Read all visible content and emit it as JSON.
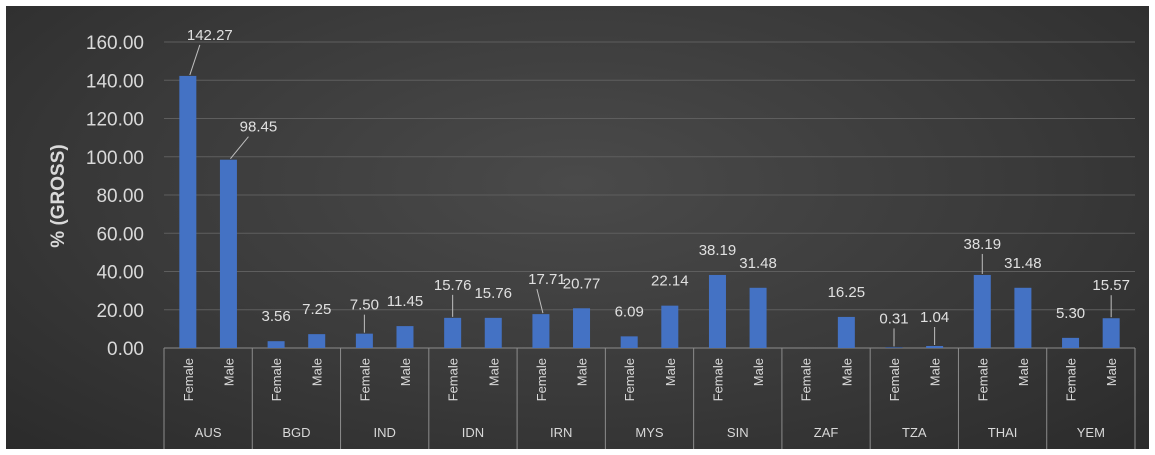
{
  "chart_data": {
    "type": "bar",
    "title": "",
    "ylabel": "% (GROSS)",
    "xlabel": "",
    "ylim": [
      0,
      160
    ],
    "yticks": [
      "0.00",
      "20.00",
      "40.00",
      "60.00",
      "80.00",
      "100.00",
      "120.00",
      "140.00",
      "160.00"
    ],
    "grid": true,
    "legend": "none",
    "bar_color": "#4472c4",
    "groups": [
      {
        "name": "AUS",
        "categories": [
          "Female",
          "Male"
        ],
        "values": [
          142.27,
          98.45
        ],
        "labels": [
          "142.27",
          "98.45"
        ]
      },
      {
        "name": "BGD",
        "categories": [
          "Female",
          "Male"
        ],
        "values": [
          3.56,
          7.25
        ],
        "labels": [
          "3.56",
          "7.25"
        ]
      },
      {
        "name": "IND",
        "categories": [
          "Female",
          "Male"
        ],
        "values": [
          7.5,
          11.45
        ],
        "labels": [
          "7.50",
          "11.45"
        ]
      },
      {
        "name": "IDN",
        "categories": [
          "Female",
          "Male"
        ],
        "values": [
          15.76,
          15.76
        ],
        "labels": [
          "15.76",
          "15.76"
        ]
      },
      {
        "name": "IRN",
        "categories": [
          "Female",
          "Male"
        ],
        "values": [
          17.71,
          20.77
        ],
        "labels": [
          "17.71",
          "20.77"
        ]
      },
      {
        "name": "MYS",
        "categories": [
          "Female",
          "Male"
        ],
        "values": [
          6.09,
          22.14
        ],
        "labels": [
          "6.09",
          "22.14"
        ]
      },
      {
        "name": "SIN",
        "categories": [
          "Female",
          "Male"
        ],
        "values": [
          38.19,
          31.48
        ],
        "labels": [
          "38.19",
          "31.48"
        ]
      },
      {
        "name": "ZAF",
        "categories": [
          "Female",
          "Male"
        ],
        "values": [
          0,
          16.25
        ],
        "labels": [
          "",
          "16.25"
        ]
      },
      {
        "name": "TZA",
        "categories": [
          "Female",
          "Male"
        ],
        "values": [
          0.31,
          1.04
        ],
        "labels": [
          "0.31",
          "1.04"
        ]
      },
      {
        "name": "THAI",
        "categories": [
          "Female",
          "Male"
        ],
        "values": [
          38.19,
          31.48
        ],
        "labels": [
          "38.19",
          "31.48"
        ]
      },
      {
        "name": "YEM",
        "categories": [
          "Female",
          "Male"
        ],
        "values": [
          5.3,
          15.57
        ],
        "labels": [
          "5.30",
          "15.57"
        ]
      }
    ]
  }
}
